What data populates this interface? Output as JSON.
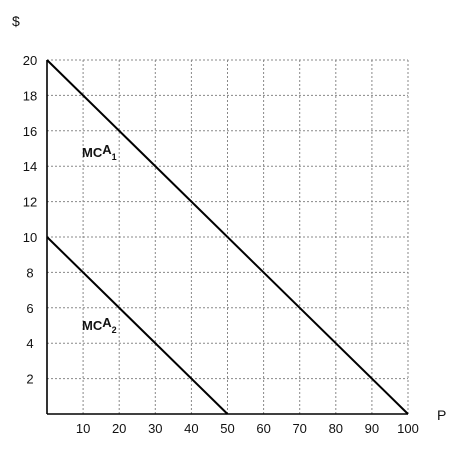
{
  "chart_data": {
    "type": "line",
    "xlabel": "P",
    "ylabel": "$",
    "xlim": [
      0,
      100
    ],
    "ylim": [
      0,
      20
    ],
    "xticks": [
      "10",
      "20",
      "30",
      "40",
      "50",
      "60",
      "70",
      "80",
      "90",
      "100"
    ],
    "yticks": [
      "2",
      "4",
      "6",
      "8",
      "10",
      "12",
      "14",
      "16",
      "18",
      "20"
    ],
    "grid": true,
    "series": [
      {
        "name": "MC",
        "sup": "A",
        "sub": "1",
        "points": [
          [
            0,
            20
          ],
          [
            100,
            0
          ]
        ]
      },
      {
        "name": "MC",
        "sup": "A",
        "sub": "2",
        "points": [
          [
            0,
            10
          ],
          [
            50,
            0
          ]
        ]
      }
    ]
  }
}
